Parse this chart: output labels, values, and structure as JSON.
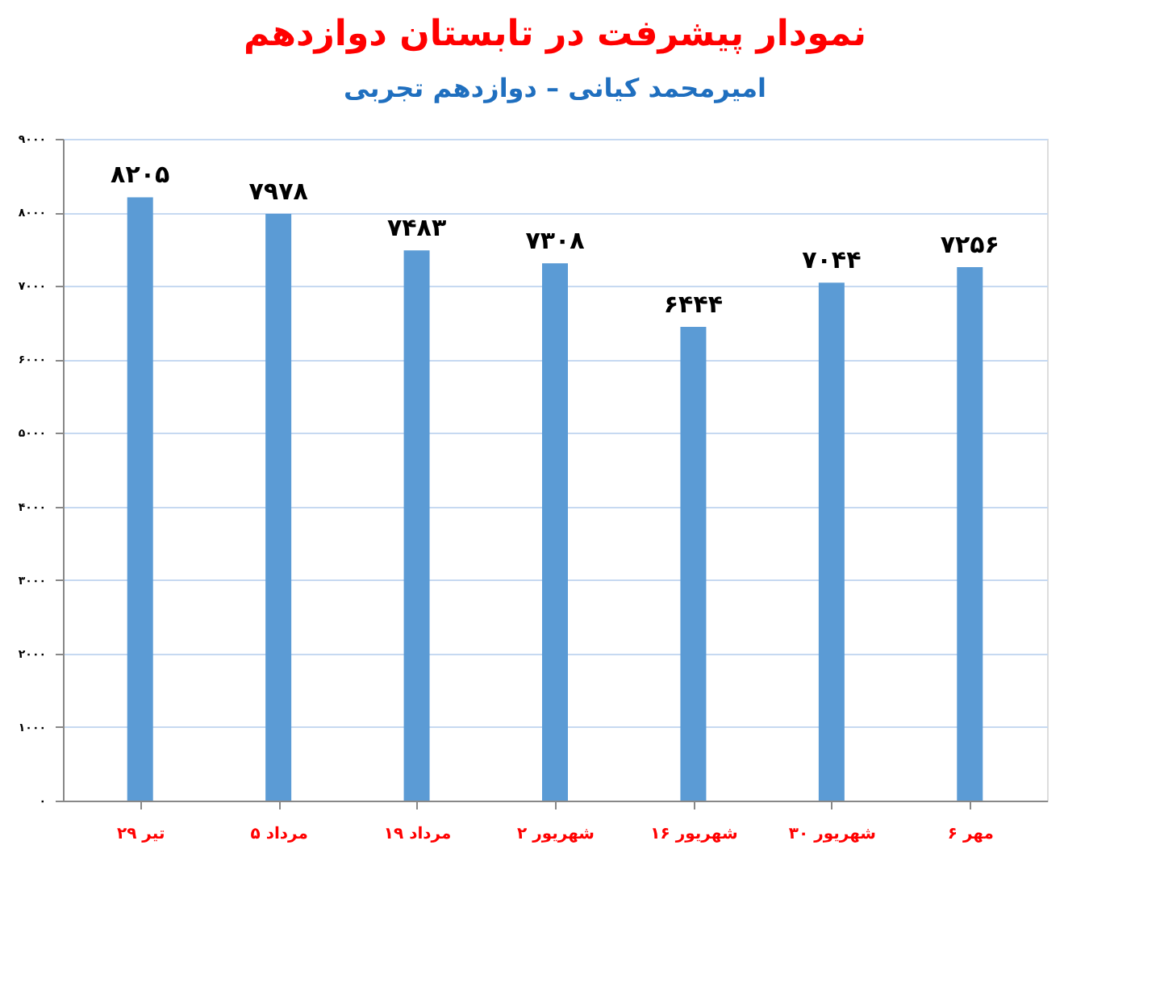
{
  "chart_data": {
    "type": "bar",
    "title": "نمودار پیشرفت در تابستان دوازدهم",
    "subtitle": "امیرمحمد کیانی – دوازدهم تجربی",
    "categories": [
      "۲۹ تیر",
      "۵ مرداد",
      "۱۹ مرداد",
      "۲ شهریور",
      "۱۶ شهریور",
      "۳۰ شهریور",
      "۶ مهر"
    ],
    "values": [
      8205,
      7978,
      7483,
      7308,
      6444,
      7044,
      7256
    ],
    "value_labels": [
      "۸۲۰۵",
      "۷۹۷۸",
      "۷۴۸۳",
      "۷۳۰۸",
      "۶۴۴۴",
      "۷۰۴۴",
      "۷۲۵۶"
    ],
    "color": "#5b9bd5",
    "ylim": [
      0,
      9000
    ],
    "yticks": [
      {
        "value": 0,
        "label": "۰"
      },
      {
        "value": 1000,
        "label": "۱۰۰۰"
      },
      {
        "value": 2000,
        "label": "۲۰۰۰"
      },
      {
        "value": 3000,
        "label": "۳۰۰۰"
      },
      {
        "value": 4000,
        "label": "۴۰۰۰"
      },
      {
        "value": 5000,
        "label": "۵۰۰۰"
      },
      {
        "value": 6000,
        "label": "۶۰۰۰"
      },
      {
        "value": 7000,
        "label": "۷۰۰۰"
      },
      {
        "value": 8000,
        "label": "۸۰۰۰"
      },
      {
        "value": 9000,
        "label": "۹۰۰۰"
      }
    ],
    "grid": "y"
  }
}
